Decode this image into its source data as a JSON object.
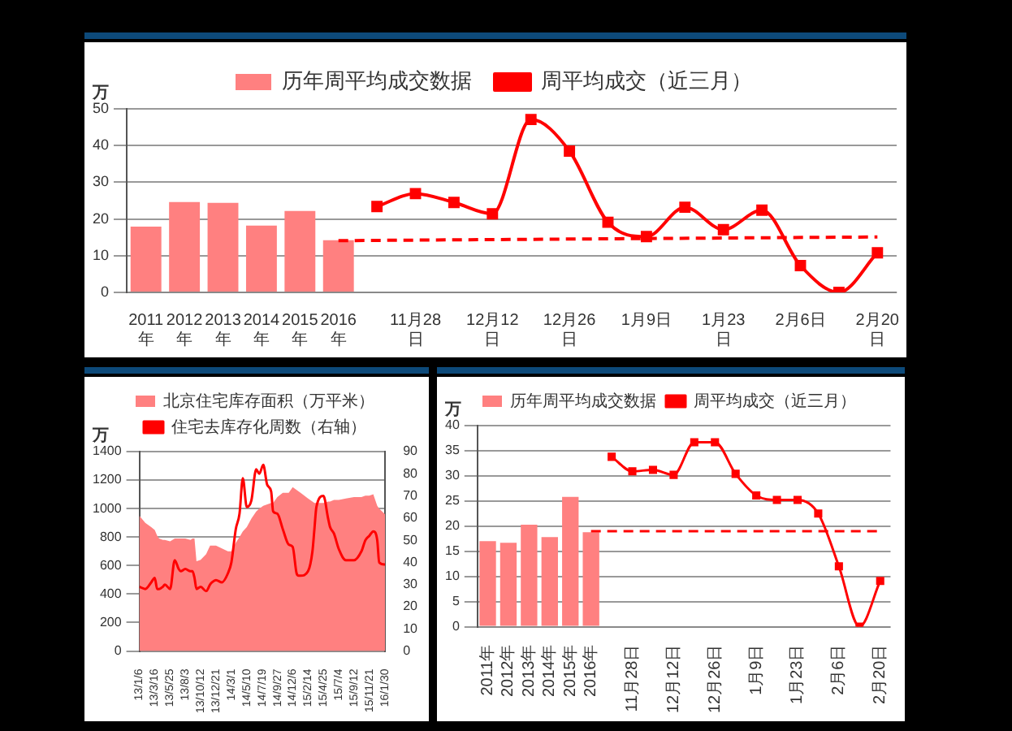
{
  "chart_data": [
    {
      "type": "bar",
      "categories": [
        "2011年",
        "2012年",
        "2013年",
        "2014年",
        "2015年",
        "2016年",
        null,
        "11月28日",
        null,
        "12月12日",
        null,
        "12月26日",
        null,
        "1月9日",
        null,
        "1月23日",
        null,
        "2月6日",
        null,
        "2月20日"
      ],
      "series": [
        {
          "name": "历年周平均成交数据",
          "color": "#ff8080",
          "values": [
            17.9,
            24.6,
            24.4,
            18.2,
            22.2,
            14.2,
            null,
            null,
            null,
            null,
            null,
            null,
            null,
            null,
            null,
            null,
            null,
            null,
            null,
            null
          ]
        },
        {
          "name": "周平均成交（近三月）",
          "type": "line",
          "color": "#ff0000",
          "marker": "square",
          "values": [
            null,
            null,
            null,
            null,
            null,
            null,
            23.4,
            26.9,
            24.5,
            21.4,
            47.1,
            38.5,
            19.1,
            15.2,
            23.2,
            17.1,
            22.4,
            7.3,
            0,
            10.8
          ]
        },
        {
          "type": "line",
          "color": "#ff0000",
          "line_style": "dashed",
          "marker": "none",
          "values": [
            null,
            null,
            null,
            null,
            null,
            14.1,
            null,
            null,
            null,
            null,
            null,
            null,
            null,
            null,
            null,
            null,
            null,
            null,
            null,
            15.1
          ]
        }
      ],
      "ylabel": "万",
      "ylim": [
        0,
        50
      ],
      "yticks": [
        0,
        10,
        20,
        30,
        40,
        50
      ],
      "grid": "y",
      "legend": "top"
    },
    {
      "type": "area",
      "x": [
        "2013-01-06",
        "2013-02-02",
        "2013-03-01",
        "2013-03-17",
        "2013-03-28",
        "2013-04-06",
        "2013-04-23",
        "2013-05-02",
        "2013-05-26",
        "2013-06-16",
        "2013-07-04",
        "2013-07-13",
        "2013-08-03",
        "2013-08-27",
        "2013-09-05",
        "2013-09-14",
        "2013-09-23",
        "2013-10-12",
        "2013-11-06",
        "2013-11-24",
        "2013-12-03",
        "2013-12-21",
        "2014-01-17",
        "2014-02-13",
        "2014-03-01",
        "2014-03-21",
        "2014-04-07",
        "2014-04-22",
        "2014-05-10",
        "2014-05-31",
        "2014-06-22",
        "2014-07-06",
        "2014-07-24",
        "2014-08-11",
        "2014-08-29",
        "2014-09-07",
        "2014-09-26",
        "2014-10-21",
        "2014-11-17",
        "2014-12-05",
        "2014-12-23",
        "2015-01-01",
        "2015-01-10",
        "2015-02-13",
        "2015-03-05",
        "2015-03-14",
        "2015-03-23",
        "2015-04-24",
        "2015-05-15",
        "2015-05-24",
        "2015-06-11",
        "2015-07-03",
        "2015-08-04",
        "2015-09-10",
        "2015-10-14",
        "2015-11-01",
        "2015-11-19",
        "2015-12-07",
        "2015-12-25",
        "2016-01-03",
        "2016-01-30"
      ],
      "series": [
        {
          "name": "北京住宅库存面积（万平米）",
          "color": "#ff8080",
          "values": [
            950,
            900,
            870,
            850,
            810,
            790,
            780,
            780,
            770,
            790,
            790,
            790,
            790,
            780,
            790,
            790,
            630,
            640,
            680,
            740,
            740,
            740,
            720,
            700,
            700,
            760,
            800,
            840,
            870,
            930,
            980,
            1000,
            1020,
            1030,
            1040,
            1040,
            1080,
            1110,
            1110,
            1150,
            1130,
            1120,
            1110,
            1070,
            1050,
            1040,
            1040,
            1040,
            1050,
            1050,
            1060,
            1060,
            1070,
            1080,
            1080,
            1090,
            1090,
            1100,
            1020,
            1000,
            960
          ]
        },
        {
          "name": "住宅去库存化周数（右轴）",
          "type": "line",
          "axis": "y2",
          "color": "#ff0000",
          "marker": "none",
          "values": [
            29,
            28,
            31,
            33,
            28,
            28,
            29,
            30,
            28,
            41,
            37,
            36,
            37,
            36,
            36,
            33,
            28,
            29,
            27,
            30,
            31,
            32,
            31,
            35,
            40,
            55,
            62,
            78,
            65,
            68,
            82,
            80,
            84,
            75,
            72,
            63,
            62,
            55,
            48,
            47,
            35,
            34,
            34,
            36,
            45,
            55,
            65,
            70,
            60,
            56,
            53,
            46,
            41,
            41,
            45,
            50,
            52,
            54,
            50,
            40,
            39
          ]
        }
      ],
      "xlim": [
        "2013-01-06",
        "2016-01-30"
      ],
      "xticks": [
        {
          "value": "2013-01-06",
          "label": "13/1/6"
        },
        {
          "value": "2013-03-16",
          "label": "13/3/16"
        },
        {
          "value": "2013-05-25",
          "label": "13/5/25"
        },
        {
          "value": "2013-08-03",
          "label": "13/8/3"
        },
        {
          "value": "2013-10-12",
          "label": "13/10/12"
        },
        {
          "value": "2013-12-21",
          "label": "13/12/21"
        },
        {
          "value": "2014-03-01",
          "label": "14/3/1"
        },
        {
          "value": "2014-05-10",
          "label": "14/5/10"
        },
        {
          "value": "2014-07-19",
          "label": "14/7/19"
        },
        {
          "value": "2014-09-27",
          "label": "14/9/27"
        },
        {
          "value": "2014-12-06",
          "label": "14/12/6"
        },
        {
          "value": "2015-02-14",
          "label": "15/2/14"
        },
        {
          "value": "2015-04-25",
          "label": "15/4/25"
        },
        {
          "value": "2015-07-04",
          "label": "15/7/4"
        },
        {
          "value": "2015-09-12",
          "label": "15/9/12"
        },
        {
          "value": "2015-11-21",
          "label": "15/11/21"
        },
        {
          "value": "2016-01-30",
          "label": "16/1/30"
        }
      ],
      "ylabel": "万",
      "ylim": [
        0,
        1400
      ],
      "yticks": [
        0,
        200,
        400,
        600,
        800,
        1000,
        1200,
        1400
      ],
      "y2lim": [
        0,
        90
      ],
      "y2ticks": [
        0,
        10,
        20,
        30,
        40,
        50,
        60,
        70,
        80,
        90
      ],
      "grid": "y",
      "legend": "top"
    },
    {
      "type": "bar",
      "categories": [
        "2011年",
        "2012年",
        "2013年",
        "2014年",
        "2015年",
        "2016年",
        null,
        "11月28日",
        null,
        "12月12日",
        null,
        "12月26日",
        null,
        "1月9日",
        null,
        "1月23日",
        null,
        "2月6日",
        null,
        "2月20日"
      ],
      "series": [
        {
          "name": "历年周平均成交数据",
          "color": "#ff8080",
          "values": [
            17,
            16.7,
            20.3,
            17.8,
            25.8,
            18.8,
            null,
            null,
            null,
            null,
            null,
            null,
            null,
            null,
            null,
            null,
            null,
            null,
            null,
            null
          ]
        },
        {
          "name": "周平均成交（近三月）",
          "type": "line",
          "color": "#ff0000",
          "marker": "square",
          "values": [
            null,
            null,
            null,
            null,
            null,
            null,
            33.8,
            30.9,
            31.2,
            30.2,
            36.7,
            36.7,
            30.4,
            26.1,
            25.2,
            25.2,
            22.5,
            12,
            0,
            9.1
          ]
        },
        {
          "type": "line",
          "color": "#ff0000",
          "line_style": "dashed",
          "marker": "none",
          "values": [
            null,
            null,
            null,
            null,
            null,
            19,
            null,
            null,
            null,
            null,
            null,
            null,
            null,
            null,
            null,
            null,
            null,
            null,
            null,
            19
          ]
        }
      ],
      "ylabel": "万",
      "ylim": [
        0,
        40
      ],
      "yticks": [
        0,
        5,
        10,
        15,
        20,
        25,
        30,
        35,
        40
      ],
      "grid": "y",
      "legend": "top"
    }
  ]
}
